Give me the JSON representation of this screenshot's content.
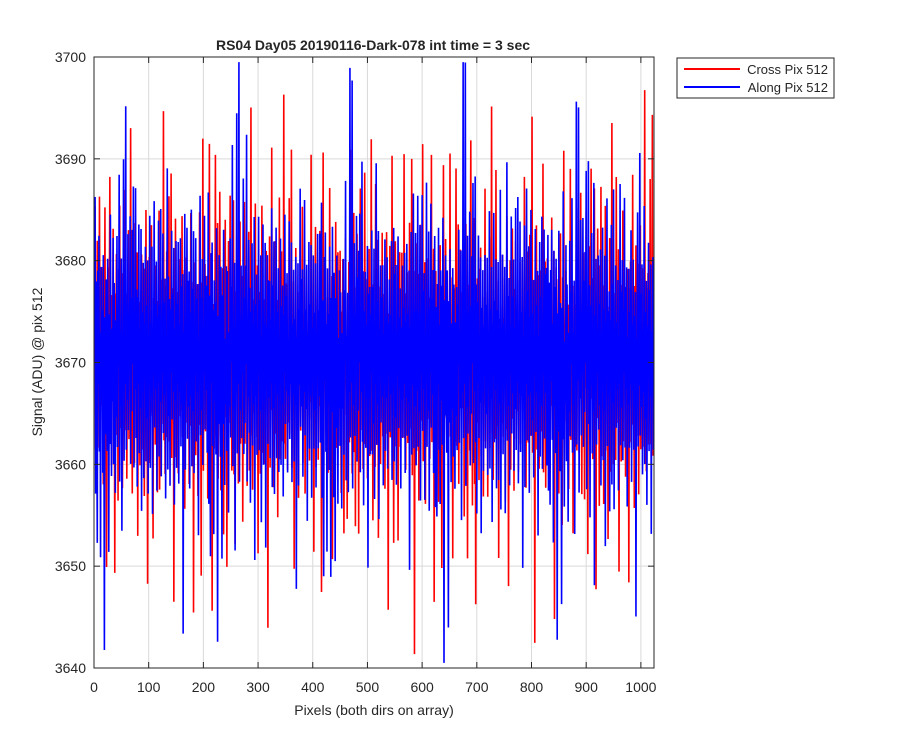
{
  "chart_data": {
    "type": "line",
    "title": "RS04 Day05 20190116-Dark-078 int time = 3 sec",
    "xlabel": "Pixels (both dirs on array)",
    "ylabel": "Signal (ADU) @ pix 512",
    "xlim": [
      0,
      1024
    ],
    "ylim": [
      3640,
      3700
    ],
    "xticks": [
      0,
      100,
      200,
      300,
      400,
      500,
      600,
      700,
      800,
      900,
      1000
    ],
    "yticks": [
      3640,
      3650,
      3660,
      3670,
      3680,
      3690,
      3700
    ],
    "grid": true,
    "legend_position": "outside-top-right",
    "series": [
      {
        "name": "Cross Pix 512",
        "color": "#ff0000",
        "x_start": 1,
        "x_step": 1,
        "mean": 3670,
        "values": [
          3670,
          3687,
          3662,
          3675,
          3668,
          3681,
          3660,
          3673,
          3666,
          3684,
          3670,
          3659,
          3676,
          3665,
          3679,
          3671,
          3656,
          3674,
          3668,
          3683,
          3664,
          3672,
          3652,
          3677,
          3669,
          3680,
          3663,
          3675,
          3689,
          3666,
          3671,
          3658,
          3678,
          3667,
          3684,
          3660,
          3673,
          3649,
          3676,
          3669,
          3681,
          3664,
          3672,
          3655,
          3679,
          3670,
          3684,
          3662,
          3674,
          3667,
          3678,
          3657,
          3671,
          3665,
          3688,
          3663,
          3673,
          3668,
          3677,
          3655,
          3670,
          3666,
          3682,
          3660,
          3675,
          3669,
          3694,
          3663,
          3671,
          3657,
          3678,
          3666,
          3673,
          3661,
          3688,
          3669,
          3674,
          3664,
          3680,
          3651,
          3672,
          3667,
          3677,
          3660,
          3671,
          3665,
          3684,
          3662,
          3674,
          3668,
          3678,
          3658,
          3670,
          3664,
          3682,
          3669,
          3673,
          3649,
          3676,
          3667,
          3680,
          3661,
          3672,
          3666,
          3687,
          3664,
          3671,
          3655,
          3677,
          3668,
          3681,
          3663,
          3673,
          3666,
          3678,
          3656,
          3670,
          3665,
          3683,
          3660,
          3674,
          3668,
          3679,
          3662,
          3671,
          3666,
          3693,
          3663,
          3673,
          3659,
          3677,
          3667,
          3680,
          3661,
          3672,
          3665,
          3685,
          3662,
          3674,
          3668,
          3690,
          3660,
          3670,
          3664,
          3679,
          3647,
          3672,
          3667,
          3684,
          3662,
          3671,
          3666,
          3677,
          3659,
          3673,
          3668,
          3681,
          3663,
          3670,
          3665,
          3688,
          3661,
          3674,
          3667,
          3678,
          3657,
          3672,
          3666,
          3682,
          3664,
          3671,
          3669,
          3676,
          3660,
          3673,
          3665,
          3687,
          3663,
          3670,
          3667,
          3679,
          3648,
          3672,
          3664,
          3681,
          3661,
          3674,
          3668,
          3677,
          3658,
          3671,
          3666,
          3683,
          3662,
          3673,
          3649,
          3678,
          3665,
          3690,
          3660,
          3672,
          3668,
          3680,
          3663,
          3671,
          3666,
          3677,
          3659,
          3674,
          3667,
          3688,
          3662,
          3670,
          3665,
          3679,
          3650,
          3673,
          3668,
          3676,
          3661
        ],
        "note_values": "sampled representative noise; full series has 1024 points"
      },
      {
        "name": "Along Pix 512",
        "color": "#0000ff",
        "x_start": 1,
        "x_step": 1,
        "mean": 3669,
        "values": [
          3672,
          3684,
          3658,
          3677,
          3665,
          3653,
          3679,
          3668,
          3685,
          3661,
          3674,
          3652,
          3680,
          3666,
          3676,
          3660,
          3683,
          3669,
          3643,
          3675,
          3664,
          3681,
          3667,
          3659,
          3678,
          3670,
          3648,
          3676,
          3663,
          3684,
          3669,
          3657,
          3673,
          3666,
          3682,
          3661,
          3677,
          3668,
          3654,
          3674,
          3665,
          3680,
          3662,
          3676,
          3670,
          3687,
          3660,
          3673,
          3666,
          3679,
          3655,
          3671,
          3667,
          3696,
          3662,
          3675,
          3668,
          3694,
          3659,
          3674,
          3666,
          3681,
          3663,
          3672,
          3669,
          3686,
          3661,
          3677,
          3665,
          3683,
          3670,
          3688,
          3658,
          3674,
          3667,
          3686,
          3663,
          3677,
          3656,
          3675,
          3668,
          3682,
          3661,
          3673,
          3666,
          3684,
          3652,
          3676,
          3667,
          3679,
          3660,
          3674,
          3669,
          3683,
          3662,
          3676,
          3665,
          3680,
          3657,
          3672,
          3668,
          3686,
          3661,
          3675,
          3666,
          3681,
          3655,
          3673,
          3669,
          3683,
          3663,
          3677,
          3667,
          3679,
          3658,
          3674,
          3668,
          3682,
          3660,
          3676,
          3666,
          3684,
          3657,
          3673,
          3669,
          3681,
          3662,
          3675,
          3667,
          3680,
          3656,
          3672,
          3668,
          3686,
          3661,
          3677,
          3665,
          3678,
          3659,
          3674,
          3669,
          3683,
          3663,
          3676,
          3667,
          3680,
          3657,
          3673,
          3666,
          3682,
          3661,
          3675,
          3668,
          3684,
          3658,
          3674,
          3667,
          3681,
          3662,
          3676,
          3666,
          3679,
          3647,
          3673,
          3669,
          3683,
          3660,
          3675,
          3668,
          3687,
          3662,
          3677,
          3666,
          3680,
          3659,
          3674,
          3667,
          3684,
          3661,
          3676,
          3665,
          3681,
          3657,
          3673,
          3669,
          3683,
          3662,
          3676,
          3667,
          3680,
          3656,
          3673,
          3668,
          3684,
          3661,
          3675,
          3666,
          3682,
          3658,
          3674,
          3669,
          3683,
          3663,
          3677,
          3667,
          3680,
          3660
        ],
        "note_values": "sampled representative noise; full series has 1024 points"
      }
    ]
  }
}
